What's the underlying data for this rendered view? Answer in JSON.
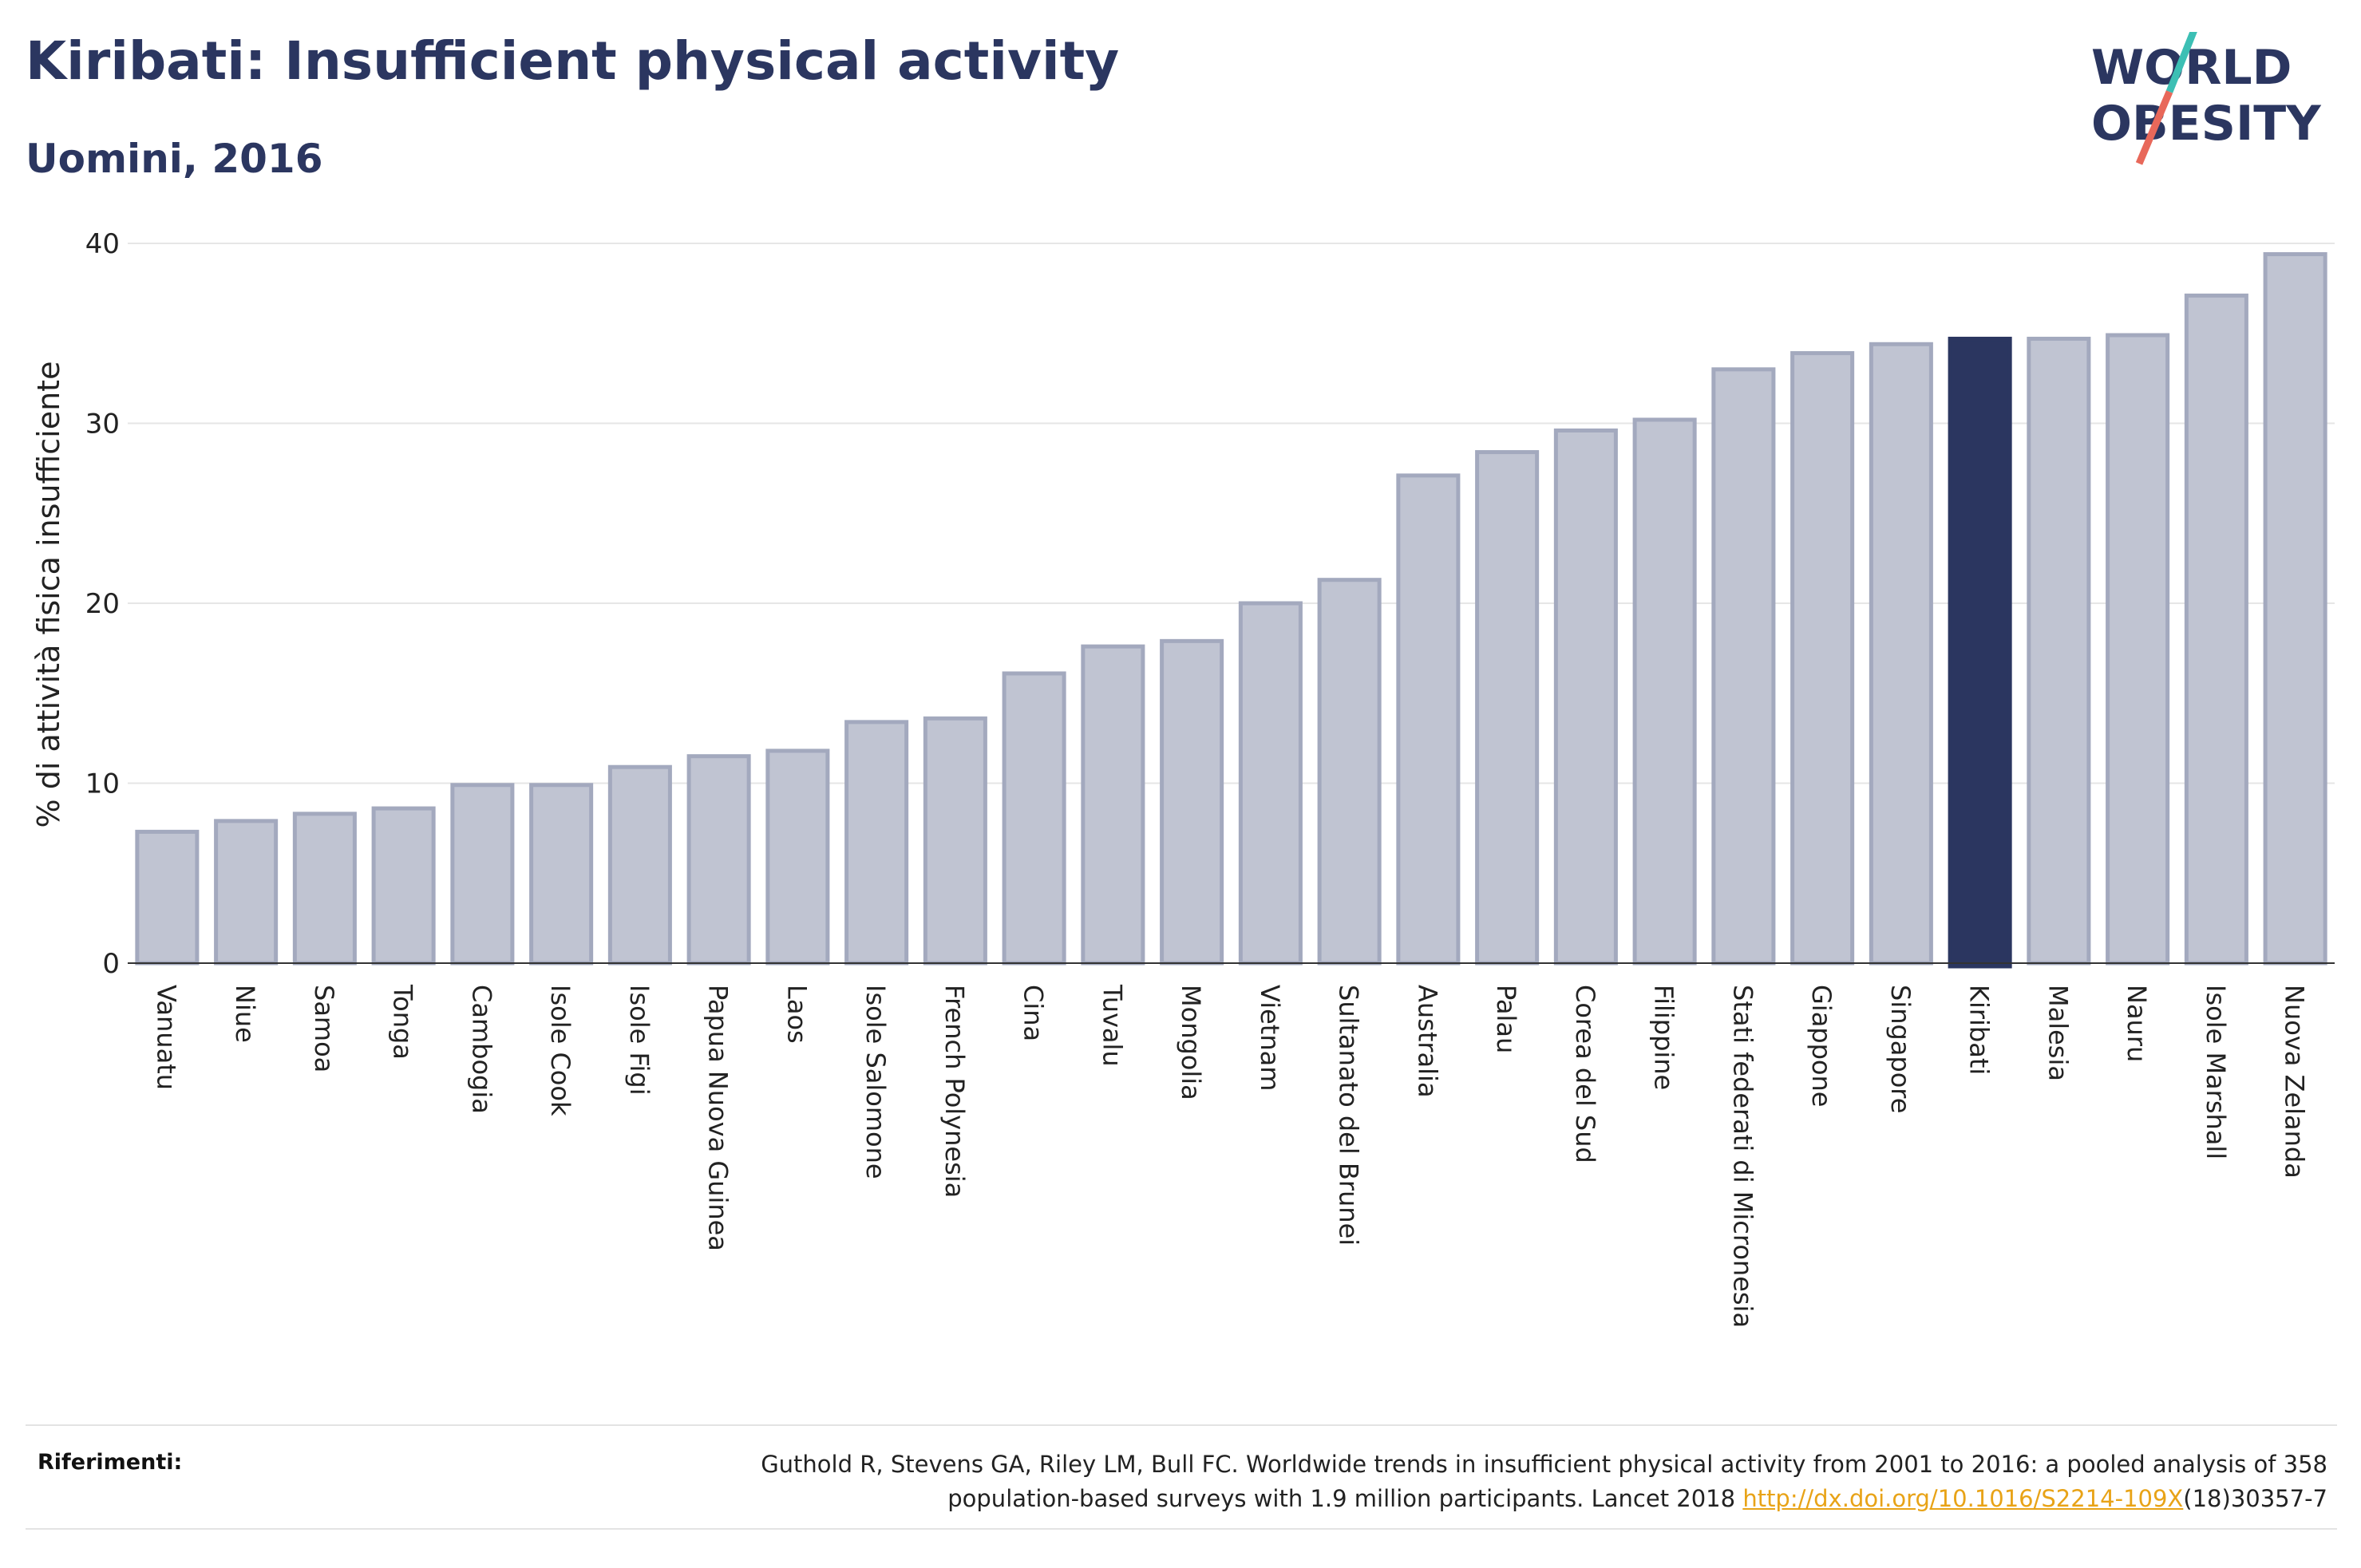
{
  "header": {
    "title": "Kiribati: Insufficient physical activity",
    "subtitle": "Uomini, 2016"
  },
  "logo": {
    "line1": "WORLD",
    "line2": "OBESITY",
    "colors": {
      "text": "#2b3660",
      "slash_teal": "#3cbfb4",
      "slash_red": "#e8685a"
    }
  },
  "chart_data": {
    "type": "bar",
    "categories": [
      "Vanuatu",
      "Niue",
      "Samoa",
      "Tonga",
      "Cambogia",
      "Isole Cook",
      "Isole Figi",
      "Papua Nuova Guinea",
      "Laos",
      "Isole Salomone",
      "French Polynesia",
      "Cina",
      "Tuvalu",
      "Mongolia",
      "Vietnam",
      "Sultanato del Brunei",
      "Australia",
      "Palau",
      "Corea del Sud",
      "Filippine",
      "Stati federati di Micronesia",
      "Giappone",
      "Singapore",
      "Kiribati",
      "Malesia",
      "Nauru",
      "Isole Marshall",
      "Nuova Zelanda"
    ],
    "values": [
      7.3,
      7.9,
      8.3,
      8.6,
      9.9,
      9.9,
      10.9,
      11.5,
      11.8,
      13.4,
      13.6,
      16.1,
      17.6,
      17.9,
      20.0,
      21.3,
      27.1,
      28.4,
      29.6,
      30.2,
      33.0,
      33.9,
      34.4,
      34.7,
      34.7,
      34.9,
      37.1,
      39.4
    ],
    "highlight": "Kiribati",
    "ylabel": "% di attività fisica insufficiente",
    "xlabel": "",
    "ylim": [
      0,
      40
    ],
    "yticks": [
      0,
      10,
      20,
      30,
      40
    ],
    "grid": true,
    "colors": {
      "bar": "#c0c4d2",
      "bar_edge": "#a3a9be",
      "highlight": "#2b3660",
      "grid": "#e6e6e6"
    }
  },
  "footer": {
    "label": "Riferimenti:",
    "reference_line1": "Guthold R, Stevens GA, Riley LM, Bull FC. Worldwide trends in insufficient physical activity from 2001 to 2016: a pooled analysis of 358",
    "reference_line2_pre": "population-based surveys with 1.9 million participants. Lancet 2018 ",
    "reference_link": "http://dx.doi.org/10.1016/S2214-109X",
    "reference_line2_post": "(18)30357-7"
  }
}
